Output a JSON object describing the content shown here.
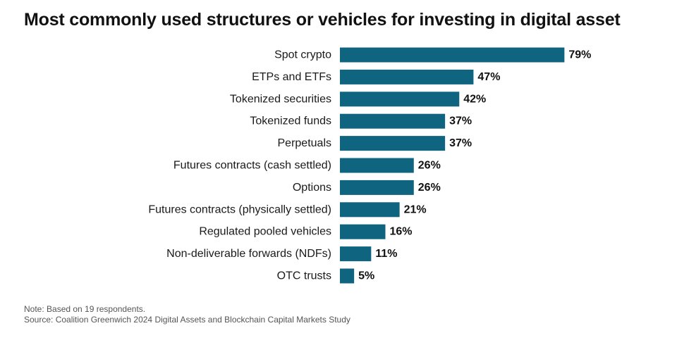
{
  "chart_data": {
    "type": "bar",
    "orientation": "horizontal",
    "title": "Most commonly used structures or vehicles for investing in digital asset",
    "categories": [
      "Spot crypto",
      "ETPs and ETFs",
      "Tokenized securities",
      "Tokenized funds",
      "Perpetuals",
      "Futures contracts (cash settled)",
      "Options",
      "Futures contracts (physically settled)",
      "Regulated pooled vehicles",
      "Non-deliverable forwards (NDFs)",
      "OTC trusts"
    ],
    "values": [
      79,
      47,
      42,
      37,
      37,
      26,
      26,
      21,
      16,
      11,
      5
    ],
    "value_labels": [
      "79%",
      "47%",
      "42%",
      "37%",
      "37%",
      "26%",
      "26%",
      "21%",
      "16%",
      "11%",
      "5%"
    ],
    "xlim": [
      0,
      100
    ],
    "grid": false,
    "bar_color": "#0f6580"
  },
  "footer": {
    "note": "Note: Based on 19 respondents.",
    "source": "Source: Coalition Greenwich 2024 Digital Assets and Blockchain Capital Markets Study"
  }
}
